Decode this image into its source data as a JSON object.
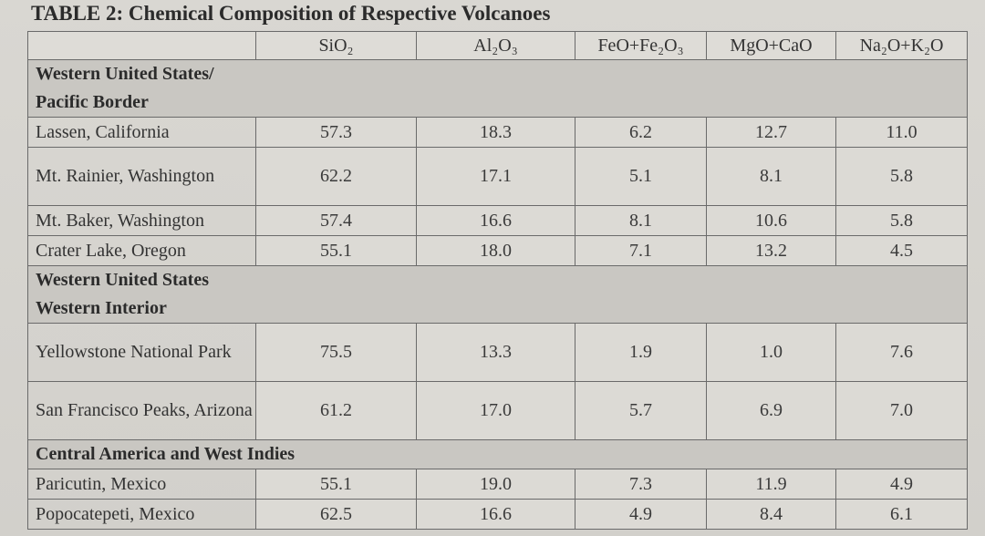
{
  "title": "TABLE 2: Chemical Composition of Respective Volcanoes",
  "columns": [
    "SiO₂",
    "Al₂O₃",
    "FeO+Fe₂O₃",
    "MgO+CaO",
    "Na₂O+K₂O"
  ],
  "sections": [
    {
      "heading_lines": [
        "Western United States/",
        "Pacific Border"
      ],
      "rows": [
        {
          "name": "Lassen, California",
          "values": [
            "57.3",
            "18.3",
            "6.2",
            "12.7",
            "11.0"
          ]
        },
        {
          "name": "Mt. Rainier, Washington",
          "values": [
            "62.2",
            "17.1",
            "5.1",
            "8.1",
            "5.8"
          ]
        },
        {
          "name": "Mt. Baker, Washington",
          "values": [
            "57.4",
            "16.6",
            "8.1",
            "10.6",
            "5.8"
          ]
        },
        {
          "name": "Crater Lake, Oregon",
          "values": [
            "55.1",
            "18.0",
            "7.1",
            "13.2",
            "4.5"
          ]
        }
      ]
    },
    {
      "heading_lines": [
        "Western United States",
        "Western Interior"
      ],
      "rows": [
        {
          "name": "Yellowstone National Park",
          "values": [
            "75.5",
            "13.3",
            "1.9",
            "1.0",
            "7.6"
          ]
        },
        {
          "name": "San Francisco Peaks, Arizona",
          "values": [
            "61.2",
            "17.0",
            "5.7",
            "6.9",
            "7.0"
          ]
        }
      ]
    },
    {
      "heading_lines": [
        "Central America and West Indies"
      ],
      "rows": [
        {
          "name": "Paricutin, Mexico",
          "values": [
            "55.1",
            "19.0",
            "7.3",
            "11.9",
            "4.9"
          ]
        },
        {
          "name": "Popocatepeti, Mexico",
          "values": [
            "62.5",
            "16.6",
            "4.9",
            "8.4",
            "6.1"
          ]
        }
      ]
    }
  ]
}
